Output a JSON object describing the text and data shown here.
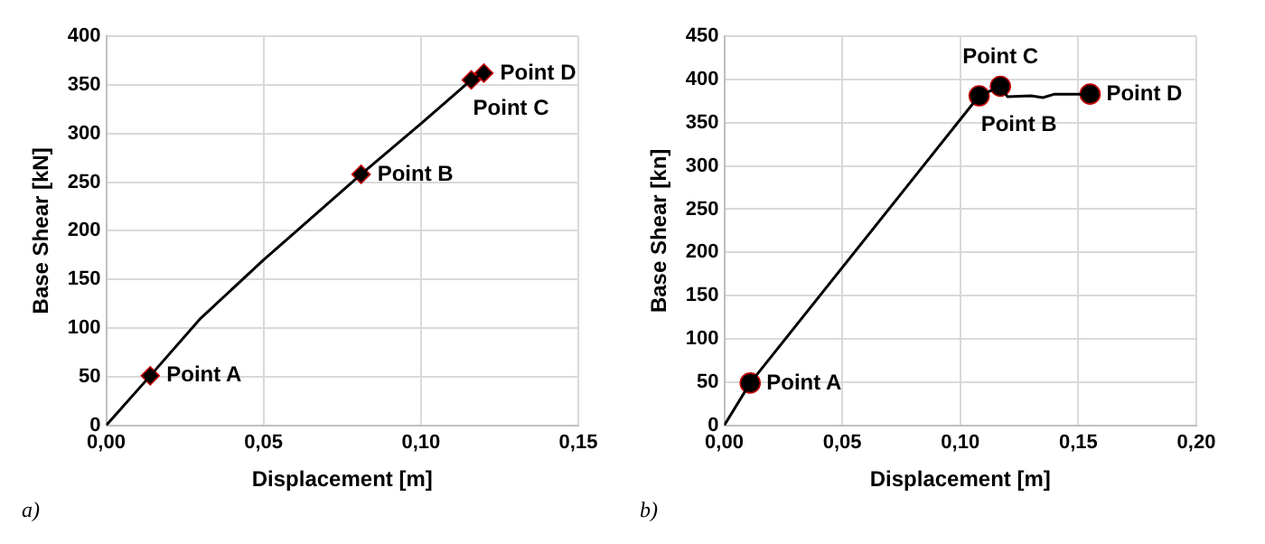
{
  "chart_data": [
    {
      "type": "line",
      "xlabel": "Displacement [m]",
      "ylabel": "Base Shear [kN]",
      "xlim": [
        0,
        0.15
      ],
      "ylim": [
        0,
        400
      ],
      "xticks": [
        {
          "value": 0,
          "label": "0,00"
        },
        {
          "value": 0.05,
          "label": "0,05"
        },
        {
          "value": 0.1,
          "label": "0,10"
        },
        {
          "value": 0.15,
          "label": "0,15"
        }
      ],
      "yticks": [
        0,
        50,
        100,
        150,
        200,
        250,
        300,
        350,
        400
      ],
      "grid": true,
      "series": [
        {
          "color": "#000000",
          "marker": "none",
          "x": [
            0,
            0.014,
            0.03,
            0.05,
            0.081,
            0.1,
            0.116,
            0.12
          ],
          "values": [
            0,
            51,
            110,
            170,
            258,
            310,
            355,
            362
          ]
        },
        {
          "type": "scatter",
          "color": "#000000",
          "marker": "diamond",
          "x": [
            0.014,
            0.081,
            0.116,
            0.12
          ],
          "values": [
            51,
            258,
            355,
            362
          ]
        }
      ],
      "annotations": [
        {
          "text": "Point A",
          "x": 0.014,
          "y": 51
        },
        {
          "text": "Point B",
          "x": 0.081,
          "y": 258
        },
        {
          "text": "Point C",
          "x": 0.116,
          "y": 355
        },
        {
          "text": "Point D",
          "x": 0.12,
          "y": 362
        },
        "a)"
      ]
    },
    {
      "type": "line",
      "xlabel": "Displacement [m]",
      "ylabel": "Base Shear [kn]",
      "xlim": [
        0,
        0.2
      ],
      "ylim": [
        0,
        450
      ],
      "xticks": [
        {
          "value": 0,
          "label": "0,00"
        },
        {
          "value": 0.05,
          "label": "0,05"
        },
        {
          "value": 0.1,
          "label": "0,10"
        },
        {
          "value": 0.15,
          "label": "0,15"
        },
        {
          "value": 0.2,
          "label": "0,20"
        }
      ],
      "yticks": [
        0,
        50,
        100,
        150,
        200,
        250,
        300,
        350,
        400,
        450
      ],
      "grid": true,
      "series": [
        {
          "color": "#000000",
          "marker": "none",
          "x": [
            0,
            0.011,
            0.108,
            0.117,
            0.12,
            0.13,
            0.135,
            0.14,
            0.155
          ],
          "values": [
            0,
            49,
            381,
            392,
            380,
            381,
            379,
            383,
            383
          ]
        },
        {
          "type": "scatter",
          "color": "#000000",
          "marker": "circle",
          "x": [
            0.011,
            0.108,
            0.117,
            0.155
          ],
          "values": [
            49,
            381,
            392,
            383
          ]
        }
      ],
      "annotations": [
        {
          "text": "Point A",
          "x": 0.011,
          "y": 49
        },
        {
          "text": "Point B",
          "x": 0.108,
          "y": 381
        },
        {
          "text": "Point C",
          "x": 0.117,
          "y": 392
        },
        {
          "text": "Point D",
          "x": 0.155,
          "y": 383
        },
        "b)"
      ]
    }
  ]
}
